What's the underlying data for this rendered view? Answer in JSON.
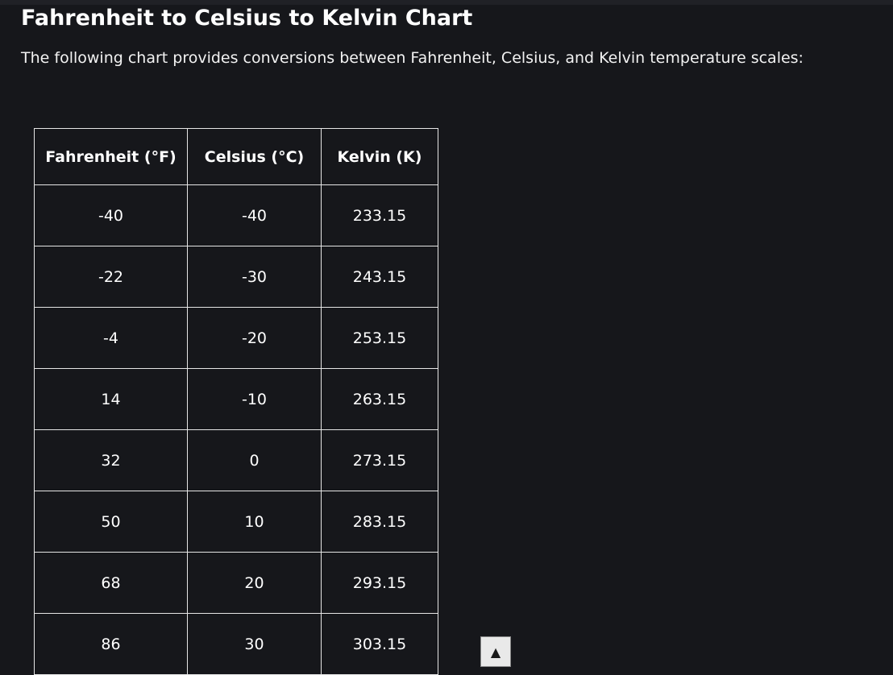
{
  "page": {
    "title": "Fahrenheit to Celsius to Kelvin Chart",
    "intro": "The following chart provides conversions between Fahrenheit, Celsius, and Kelvin temperature scales:"
  },
  "table": {
    "headers": [
      "Fahrenheit (°F)",
      "Celsius (°C)",
      "Kelvin (K)"
    ],
    "rows": [
      [
        "-40",
        "-40",
        "233.15"
      ],
      [
        "-22",
        "-30",
        "243.15"
      ],
      [
        "-4",
        "-20",
        "253.15"
      ],
      [
        "14",
        "-10",
        "263.15"
      ],
      [
        "32",
        "0",
        "273.15"
      ],
      [
        "50",
        "10",
        "283.15"
      ],
      [
        "68",
        "20",
        "293.15"
      ],
      [
        "86",
        "30",
        "303.15"
      ]
    ]
  },
  "scroll_top": {
    "icon": "up-triangle-icon",
    "glyph": "▲"
  },
  "colors": {
    "background": "#16171b",
    "text": "#ffffff",
    "border": "#e6e6e6"
  }
}
